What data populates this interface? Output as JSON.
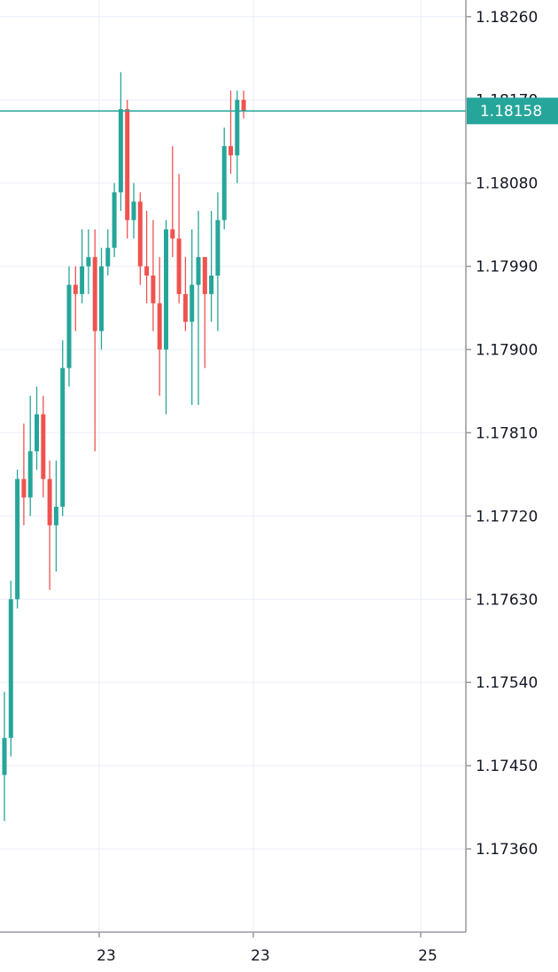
{
  "chart_data": {
    "type": "candlestick",
    "y_axis": {
      "position": "right",
      "ticks": [
        "1.18260",
        "1.18170",
        "1.18080",
        "1.17990",
        "1.17900",
        "1.17810",
        "1.17720",
        "1.17630",
        "1.17540",
        "1.17450",
        "1.17360"
      ],
      "range": [
        1.1727,
        1.18278
      ]
    },
    "x_axis": {
      "ticks": [
        "23",
        "23",
        "25"
      ]
    },
    "grid": true,
    "last_price": {
      "value": 1.18158,
      "label": "1.18158",
      "color": "#26a69a"
    },
    "colors": {
      "up": "#26a69a",
      "down": "#ef5350",
      "grid": "#f0f3fa",
      "axis": "#9598a1"
    },
    "candles": [
      {
        "o": 1.1744,
        "h": 1.1753,
        "l": 1.1739,
        "c": 1.1748
      },
      {
        "o": 1.1748,
        "h": 1.1765,
        "l": 1.1746,
        "c": 1.1763
      },
      {
        "o": 1.1763,
        "h": 1.1777,
        "l": 1.1762,
        "c": 1.1776
      },
      {
        "o": 1.1776,
        "h": 1.1782,
        "l": 1.1771,
        "c": 1.1774
      },
      {
        "o": 1.1774,
        "h": 1.1785,
        "l": 1.1772,
        "c": 1.1779
      },
      {
        "o": 1.1779,
        "h": 1.1786,
        "l": 1.1777,
        "c": 1.1783
      },
      {
        "o": 1.1783,
        "h": 1.1785,
        "l": 1.1774,
        "c": 1.1776
      },
      {
        "o": 1.1776,
        "h": 1.1778,
        "l": 1.1764,
        "c": 1.1771
      },
      {
        "o": 1.1771,
        "h": 1.1778,
        "l": 1.1766,
        "c": 1.1773
      },
      {
        "o": 1.1773,
        "h": 1.1791,
        "l": 1.1772,
        "c": 1.1788
      },
      {
        "o": 1.1788,
        "h": 1.1799,
        "l": 1.1786,
        "c": 1.1797
      },
      {
        "o": 1.1797,
        "h": 1.1799,
        "l": 1.1792,
        "c": 1.1796
      },
      {
        "o": 1.1796,
        "h": 1.1803,
        "l": 1.1795,
        "c": 1.1799
      },
      {
        "o": 1.1799,
        "h": 1.1803,
        "l": 1.1796,
        "c": 1.18
      },
      {
        "o": 1.18,
        "h": 1.1803,
        "l": 1.1779,
        "c": 1.1792
      },
      {
        "o": 1.1792,
        "h": 1.1801,
        "l": 1.179,
        "c": 1.1799
      },
      {
        "o": 1.1799,
        "h": 1.1803,
        "l": 1.1798,
        "c": 1.1801
      },
      {
        "o": 1.1801,
        "h": 1.1808,
        "l": 1.18,
        "c": 1.1807
      },
      {
        "o": 1.1807,
        "h": 1.182,
        "l": 1.1805,
        "c": 1.1816
      },
      {
        "o": 1.1816,
        "h": 1.1817,
        "l": 1.1802,
        "c": 1.1804
      },
      {
        "o": 1.1804,
        "h": 1.1808,
        "l": 1.1802,
        "c": 1.1806
      },
      {
        "o": 1.1806,
        "h": 1.1807,
        "l": 1.1797,
        "c": 1.1799
      },
      {
        "o": 1.1799,
        "h": 1.1805,
        "l": 1.1795,
        "c": 1.1798
      },
      {
        "o": 1.1798,
        "h": 1.1804,
        "l": 1.1792,
        "c": 1.1795
      },
      {
        "o": 1.1795,
        "h": 1.18,
        "l": 1.1785,
        "c": 1.179
      },
      {
        "o": 1.179,
        "h": 1.1804,
        "l": 1.1783,
        "c": 1.1803
      },
      {
        "o": 1.1803,
        "h": 1.1812,
        "l": 1.18,
        "c": 1.1802
      },
      {
        "o": 1.1802,
        "h": 1.1809,
        "l": 1.1795,
        "c": 1.1796
      },
      {
        "o": 1.1796,
        "h": 1.18,
        "l": 1.1792,
        "c": 1.1793
      },
      {
        "o": 1.1793,
        "h": 1.1803,
        "l": 1.1784,
        "c": 1.1797
      },
      {
        "o": 1.1797,
        "h": 1.1805,
        "l": 1.1784,
        "c": 1.18
      },
      {
        "o": 1.18,
        "h": 1.18,
        "l": 1.1788,
        "c": 1.1796
      },
      {
        "o": 1.1796,
        "h": 1.1805,
        "l": 1.1793,
        "c": 1.1798
      },
      {
        "o": 1.1798,
        "h": 1.1807,
        "l": 1.1792,
        "c": 1.1804
      },
      {
        "o": 1.1804,
        "h": 1.1814,
        "l": 1.1803,
        "c": 1.1812
      },
      {
        "o": 1.1812,
        "h": 1.1818,
        "l": 1.1809,
        "c": 1.1811
      },
      {
        "o": 1.1811,
        "h": 1.1818,
        "l": 1.1808,
        "c": 1.1817
      },
      {
        "o": 1.1817,
        "h": 1.1818,
        "l": 1.1815,
        "c": 1.18158
      }
    ]
  }
}
